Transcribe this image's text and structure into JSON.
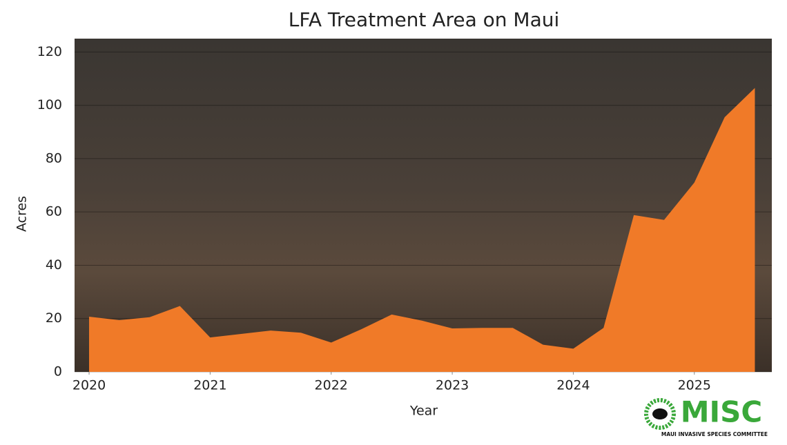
{
  "chart_data": {
    "type": "area",
    "title": "LFA Treatment Area on Maui",
    "xlabel": "Year",
    "ylabel": "Acres",
    "x": [
      2020,
      2020.25,
      2020.5,
      2020.75,
      2021,
      2021.25,
      2021.5,
      2021.75,
      2022,
      2022.25,
      2022.5,
      2022.75,
      2023,
      2023.25,
      2023.5,
      2023.75,
      2024,
      2024.25,
      2024.5,
      2024.75,
      2025,
      2025.25,
      2025.5
    ],
    "values": [
      20.7,
      19.4,
      20.5,
      24.7,
      12.9,
      14.2,
      15.5,
      14.7,
      11,
      16,
      21.5,
      19.2,
      16.3,
      16.5,
      16.5,
      10.2,
      8.7,
      16.5,
      58.8,
      57,
      71,
      95.5,
      106.5
    ],
    "color": "#f07a28",
    "xlim": [
      2019.88,
      2025.64
    ],
    "xticks": [
      2020,
      2021,
      2022,
      2023,
      2024,
      2025
    ],
    "ylim": [
      0,
      125
    ],
    "yticks": [
      0,
      20,
      40,
      60,
      80,
      100,
      120
    ],
    "grid": true
  },
  "logo": {
    "title": "MISC",
    "subtitle": "MAUI INVASIVE SPECIES COMMITTEE"
  }
}
